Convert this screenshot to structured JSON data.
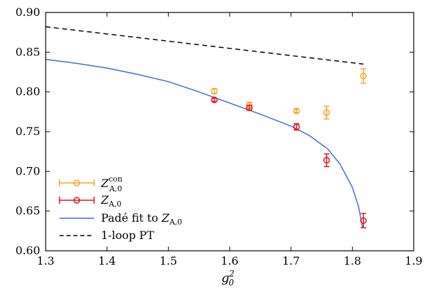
{
  "chart_data": {
    "type": "scatter",
    "title": "",
    "xlabel": "g₀²",
    "ylabel": "",
    "xlim": [
      1.3,
      1.9
    ],
    "ylim": [
      0.6,
      0.9
    ],
    "xticks": [
      "1.3",
      "1.4",
      "1.5",
      "1.6",
      "1.7",
      "1.8",
      "1.9"
    ],
    "yticks": [
      "0.60",
      "0.65",
      "0.70",
      "0.75",
      "0.80",
      "0.85",
      "0.90"
    ],
    "grid": false,
    "legend_position": "bottom-left",
    "series": [
      {
        "name": "Z_{A,0}^{con}",
        "kind": "points-with-errorbars",
        "color": "#f5a623",
        "points": [
          {
            "x": 1.575,
            "y": 0.801,
            "err": 0.003
          },
          {
            "x": 1.632,
            "y": 0.783,
            "err": 0.004
          },
          {
            "x": 1.709,
            "y": 0.776,
            "err": 0.002
          },
          {
            "x": 1.758,
            "y": 0.774,
            "err": 0.008
          },
          {
            "x": 1.818,
            "y": 0.82,
            "err": 0.009
          }
        ]
      },
      {
        "name": "Z_{A,0}",
        "kind": "points-with-errorbars",
        "color": "#e0101e",
        "points": [
          {
            "x": 1.575,
            "y": 0.79,
            "err": 0.002
          },
          {
            "x": 1.632,
            "y": 0.78,
            "err": 0.003
          },
          {
            "x": 1.709,
            "y": 0.756,
            "err": 0.004
          },
          {
            "x": 1.758,
            "y": 0.714,
            "err": 0.008
          },
          {
            "x": 1.818,
            "y": 0.638,
            "err": 0.009
          }
        ]
      },
      {
        "name": "Padé fit to Z_{A,0}",
        "kind": "line",
        "color": "#3a6fdc",
        "x": [
          1.3,
          1.35,
          1.4,
          1.45,
          1.5,
          1.55,
          1.6,
          1.65,
          1.7,
          1.73,
          1.76,
          1.78,
          1.8,
          1.81,
          1.8165
        ],
        "y": [
          0.841,
          0.836,
          0.83,
          0.822,
          0.813,
          0.8,
          0.786,
          0.772,
          0.757,
          0.745,
          0.728,
          0.709,
          0.68,
          0.656,
          0.629
        ]
      },
      {
        "name": "1-loop PT",
        "kind": "dashed-line",
        "color": "#000000",
        "x": [
          1.3,
          1.818
        ],
        "y": [
          0.882,
          0.835
        ]
      }
    ]
  },
  "legend": {
    "items": [
      {
        "main": "Z",
        "sub": "A,0",
        "sup": "con"
      },
      {
        "main": "Z",
        "sub": "A,0",
        "sup": ""
      },
      {
        "prefix": "Padé fit to ",
        "main": "Z",
        "sub": "A,0",
        "sup": ""
      },
      {
        "prefix": "1-loop PT",
        "main": "",
        "sub": "",
        "sup": ""
      }
    ]
  },
  "axis": {
    "x_label_main": "g",
    "x_label_sub": "0",
    "x_label_sup": "2"
  }
}
